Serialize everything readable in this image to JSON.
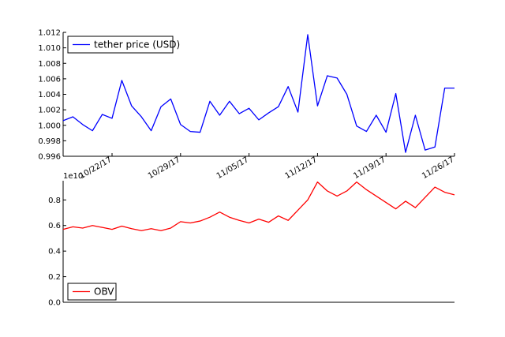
{
  "chart_data": [
    {
      "type": "line",
      "title": "",
      "xlabel": "",
      "ylabel": "",
      "color": "#0000ff",
      "legend": "upper-left",
      "grid": false,
      "series": [
        {
          "name": "tether price (USD)",
          "x": [
            "10/17/17",
            "10/18/17",
            "10/19/17",
            "10/20/17",
            "10/21/17",
            "10/22/17",
            "10/23/17",
            "10/24/17",
            "10/25/17",
            "10/26/17",
            "10/27/17",
            "10/28/17",
            "10/29/17",
            "10/30/17",
            "10/31/17",
            "11/01/17",
            "11/02/17",
            "11/03/17",
            "11/04/17",
            "11/05/17",
            "11/06/17",
            "11/07/17",
            "11/08/17",
            "11/09/17",
            "11/10/17",
            "11/11/17",
            "11/12/17",
            "11/13/17",
            "11/14/17",
            "11/15/17",
            "11/16/17",
            "11/17/17",
            "11/18/17",
            "11/19/17",
            "11/20/17",
            "11/21/17",
            "11/22/17",
            "11/23/17",
            "11/24/17",
            "11/25/17",
            "11/26/17"
          ],
          "values": [
            1.0006,
            1.0011,
            1.0001,
            0.9993,
            1.0014,
            1.0009,
            1.0058,
            1.0025,
            1.0011,
            0.9993,
            1.0024,
            1.0034,
            1.0001,
            0.9992,
            0.9991,
            1.0031,
            1.0013,
            1.0031,
            1.0015,
            1.0022,
            1.0007,
            1.0016,
            1.0024,
            1.005,
            1.0017,
            1.0117,
            1.0025,
            1.0064,
            1.0061,
            1.004,
            0.9999,
            0.9992,
            1.0013,
            0.9991,
            1.0041,
            0.9965,
            1.0013,
            0.9968,
            0.9972,
            1.0048,
            1.0048
          ]
        }
      ],
      "xticks": [
        "10/22/17",
        "10/29/17",
        "11/05/17",
        "11/12/17",
        "11/19/17",
        "11/26/17"
      ],
      "ylim": [
        0.996,
        1.012
      ],
      "yticks": [
        "0.996",
        "0.998",
        "1.000",
        "1.002",
        "1.004",
        "1.006",
        "1.008",
        "1.010",
        "1.012"
      ]
    },
    {
      "type": "line",
      "title": "",
      "xlabel": "",
      "ylabel": "",
      "color": "#ff0000",
      "legend": "lower-left",
      "grid": false,
      "offset_text": "1e10",
      "series": [
        {
          "name": "OBV",
          "x": [
            "10/17/17",
            "10/18/17",
            "10/19/17",
            "10/20/17",
            "10/21/17",
            "10/22/17",
            "10/23/17",
            "10/24/17",
            "10/25/17",
            "10/26/17",
            "10/27/17",
            "10/28/17",
            "10/29/17",
            "10/30/17",
            "10/31/17",
            "11/01/17",
            "11/02/17",
            "11/03/17",
            "11/04/17",
            "11/05/17",
            "11/06/17",
            "11/07/17",
            "11/08/17",
            "11/09/17",
            "11/10/17",
            "11/11/17",
            "11/12/17",
            "11/13/17",
            "11/14/17",
            "11/15/17",
            "11/16/17",
            "11/17/17",
            "11/18/17",
            "11/19/17",
            "11/20/17",
            "11/21/17",
            "11/22/17",
            "11/23/17",
            "11/24/17",
            "11/25/17",
            "11/26/17"
          ],
          "values": [
            0.57,
            0.59,
            0.58,
            0.6,
            0.585,
            0.57,
            0.595,
            0.575,
            0.56,
            0.575,
            0.56,
            0.58,
            0.63,
            0.62,
            0.635,
            0.665,
            0.705,
            0.665,
            0.64,
            0.62,
            0.65,
            0.625,
            0.675,
            0.64,
            0.72,
            0.8,
            0.94,
            0.87,
            0.83,
            0.87,
            0.94,
            0.88,
            0.83,
            0.78,
            0.73,
            0.79,
            0.74,
            0.82,
            0.9,
            0.86,
            0.84
          ]
        }
      ],
      "xticks": [],
      "ylim": [
        0.0,
        0.95
      ],
      "yticks": [
        "0.0",
        "0.2",
        "0.4",
        "0.6",
        "0.8"
      ]
    }
  ]
}
